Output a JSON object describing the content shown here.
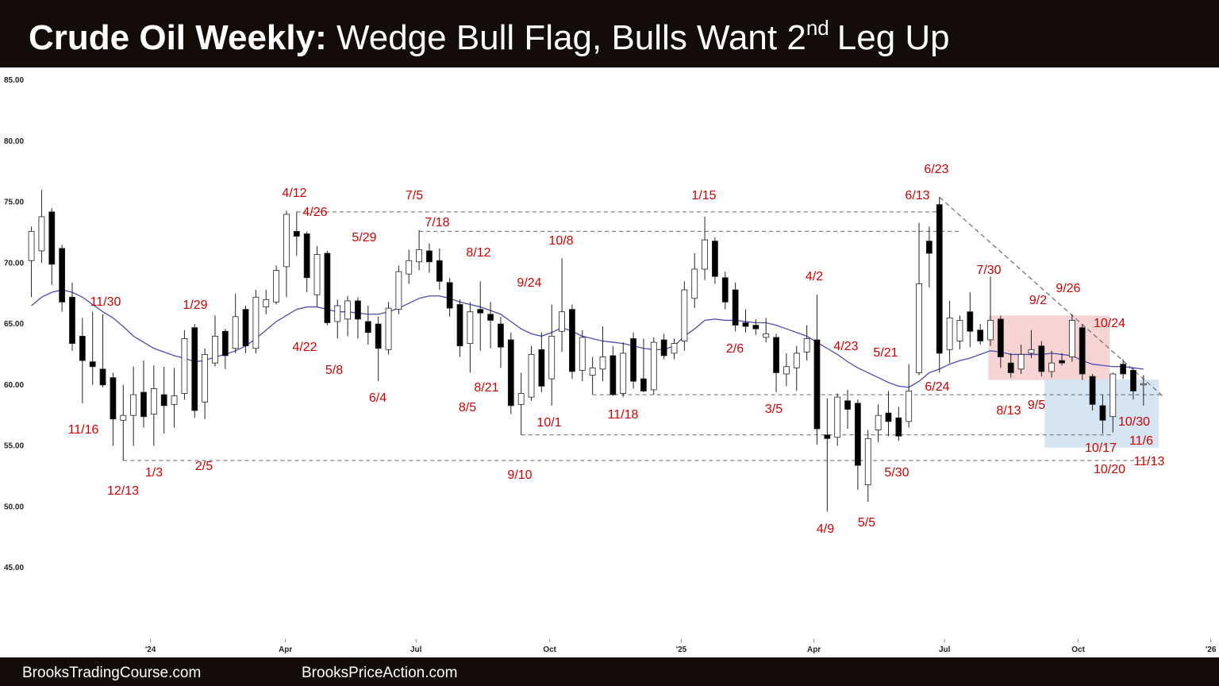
{
  "chart_data": {
    "type": "candlestick",
    "title": {
      "lead": "Crude Oil Weekly:",
      "text": "Wedge Bull Flag, Bulls Want 2",
      "sup": "nd",
      "tail": "Leg Up"
    },
    "footer": [
      "BrooksTradingCourse.com",
      "BrooksPriceAction.com"
    ],
    "categories": [
      null,
      null,
      null,
      null,
      null,
      null,
      null,
      null,
      null,
      null,
      null,
      null,
      null,
      null,
      null,
      null,
      null,
      null,
      null,
      null,
      null,
      null,
      null,
      null,
      null,
      null,
      null,
      null,
      null,
      null,
      null,
      null,
      null,
      null,
      null,
      null,
      null,
      null,
      null,
      null,
      null,
      null,
      null,
      null,
      null,
      null,
      null,
      null,
      null,
      null,
      null,
      null,
      null,
      null,
      null,
      null,
      null,
      null,
      null,
      null,
      null,
      null,
      null,
      null,
      null,
      null,
      null,
      null,
      null,
      null,
      null,
      null,
      null,
      null,
      null,
      null,
      null,
      null,
      null,
      null,
      null,
      null,
      null,
      null,
      null,
      null,
      null,
      null,
      null,
      null,
      null,
      null,
      null,
      null,
      null,
      null,
      null,
      null,
      null,
      null,
      null,
      null,
      null,
      null,
      null,
      null,
      null,
      null,
      null,
      null
    ],
    "open": [
      70.2,
      71.0,
      74.2,
      71.2,
      67.2,
      64.0,
      61.9,
      61.3,
      60.6,
      57.1,
      57.5,
      59.4,
      57.6,
      59.2,
      58.4,
      59.3,
      64.7,
      58.6,
      61.8,
      64.4,
      63.0,
      66.2,
      63.0,
      66.4,
      66.8,
      69.7,
      72.6,
      72.4,
      67.4,
      70.8,
      65.2,
      65.4,
      66.9,
      65.2,
      65.0,
      62.9,
      66.2,
      69.1,
      70.1,
      71.0,
      70.2,
      68.4,
      66.6,
      63.4,
      66.2,
      65.8,
      65.0,
      63.7,
      58.4,
      59.0,
      62.9,
      60.5,
      64.4,
      66.2,
      61.2,
      60.8,
      61.3,
      62.4,
      59.3,
      63.8,
      60.5,
      59.6,
      63.7,
      62.6,
      63.6,
      67.1,
      69.5,
      71.8,
      68.8,
      67.8,
      65.1,
      64.9,
      63.9,
      63.9,
      60.9,
      61.4,
      62.7,
      63.7,
      55.9,
      55.7,
      58.7,
      58.5,
      51.8,
      56.3,
      57.7,
      57.3,
      57.0,
      61.0,
      71.8,
      74.8,
      62.9,
      63.6,
      66.0,
      64.5,
      63.7,
      65.4,
      61.8,
      61.3,
      62.6,
      63.2,
      61.1,
      62.0,
      62.3,
      64.7,
      60.7,
      58.3,
      57.4,
      61.7,
      61.2,
      60.0
    ],
    "high": [
      73.0,
      76.0,
      74.5,
      71.5,
      68.4,
      65.5,
      66.0,
      65.8,
      61.0,
      60.0,
      61.5,
      62.0,
      61.6,
      61.5,
      61.4,
      64.5,
      65.0,
      63.0,
      65.7,
      64.6,
      67.5,
      66.5,
      67.8,
      67.8,
      69.8,
      74.3,
      74.2,
      72.6,
      71.4,
      71.0,
      67.0,
      67.3,
      67.2,
      66.5,
      65.6,
      66.8,
      69.8,
      71.1,
      72.7,
      71.6,
      71.2,
      68.8,
      67.0,
      66.8,
      68.5,
      66.8,
      65.6,
      64.3,
      61.0,
      63.2,
      64.3,
      66.6,
      70.4,
      66.6,
      64.5,
      62.3,
      64.8,
      63.2,
      63.5,
      64.3,
      63.8,
      63.9,
      64.2,
      63.8,
      68.5,
      70.8,
      73.8,
      72.1,
      69.3,
      68.4,
      66.2,
      65.4,
      65.5,
      64.2,
      62.6,
      63.2,
      64.9,
      67.4,
      58.9,
      59.3,
      59.6,
      58.8,
      56.3,
      58.4,
      59.5,
      58.2,
      61.7,
      73.3,
      73.0,
      75.4,
      66.9,
      65.7,
      67.6,
      65.0,
      68.9,
      65.7,
      62.6,
      63.3,
      64.5,
      63.6,
      62.8,
      62.6,
      65.8,
      65.0,
      60.9,
      59.2,
      61.0,
      62.1,
      61.4,
      60.8
    ],
    "low": [
      67.2,
      70.0,
      68.2,
      66.0,
      62.8,
      58.5,
      60.0,
      59.8,
      55.0,
      53.8,
      55.0,
      56.5,
      55.0,
      56.0,
      56.5,
      58.8,
      57.3,
      57.2,
      61.5,
      61.3,
      62.6,
      62.6,
      62.6,
      65.8,
      66.6,
      67.2,
      70.6,
      67.6,
      66.4,
      64.9,
      63.8,
      64.0,
      63.8,
      63.3,
      60.3,
      62.5,
      65.8,
      68.3,
      69.4,
      69.2,
      67.8,
      65.6,
      62.3,
      61.0,
      62.8,
      63.0,
      61.4,
      57.6,
      55.9,
      58.7,
      59.4,
      58.3,
      62.7,
      60.5,
      60.3,
      59.2,
      60.3,
      59.1,
      59.0,
      59.7,
      59.4,
      59.2,
      62.1,
      62.1,
      62.8,
      66.3,
      68.6,
      68.3,
      66.2,
      64.4,
      64.3,
      64.1,
      63.5,
      59.4,
      59.9,
      59.5,
      62.0,
      55.1,
      49.6,
      55.0,
      56.4,
      51.4,
      50.4,
      55.3,
      55.8,
      55.4,
      56.5,
      60.8,
      68.0,
      61.0,
      61.8,
      62.9,
      63.1,
      63.3,
      63.2,
      61.4,
      60.6,
      60.9,
      62.2,
      60.7,
      60.6,
      61.6,
      61.9,
      60.4,
      57.9,
      56.0,
      56.1,
      60.5,
      58.8,
      58.3
    ],
    "close": [
      72.6,
      73.8,
      69.9,
      66.8,
      63.4,
      62.0,
      61.5,
      60.0,
      57.2,
      57.5,
      59.2,
      57.4,
      59.7,
      58.3,
      59.1,
      63.8,
      57.9,
      62.5,
      64.0,
      62.4,
      65.6,
      63.2,
      67.2,
      67.0,
      69.4,
      74.0,
      72.2,
      68.8,
      70.7,
      65.1,
      66.5,
      66.9,
      65.4,
      64.3,
      63.0,
      66.3,
      69.3,
      70.2,
      71.1,
      70.1,
      68.5,
      66.3,
      63.2,
      66.0,
      65.9,
      65.3,
      63.1,
      58.3,
      59.3,
      62.5,
      59.9,
      64.0,
      66.0,
      61.1,
      63.9,
      61.4,
      62.3,
      59.2,
      62.6,
      60.3,
      59.5,
      63.5,
      62.4,
      63.4,
      67.8,
      69.5,
      71.9,
      68.9,
      66.8,
      64.9,
      64.8,
      64.6,
      64.2,
      61.0,
      61.5,
      62.6,
      63.8,
      56.4,
      55.6,
      59.0,
      58.0,
      53.4,
      55.6,
      57.5,
      57.0,
      55.8,
      59.5,
      68.3,
      70.8,
      62.6,
      65.5,
      65.3,
      64.4,
      63.6,
      65.3,
      62.3,
      61.0,
      62.5,
      62.9,
      61.1,
      61.8,
      61.8,
      65.3,
      60.9,
      58.4,
      57.1,
      60.9,
      60.9,
      59.5,
      60.1
    ],
    "ma": {
      "color": "#4b4bb0",
      "values": [
        66.5,
        67.2,
        67.6,
        67.8,
        67.6,
        67.2,
        66.6,
        66.0,
        65.5,
        64.8,
        64.0,
        63.5,
        63.0,
        62.7,
        62.4,
        62.2,
        61.9,
        62.0,
        62.3,
        62.5,
        62.8,
        63.2,
        63.8,
        64.5,
        65.2,
        65.7,
        66.2,
        66.4,
        66.4,
        66.2,
        66.0,
        66.0,
        65.9,
        65.8,
        65.8,
        66.0,
        66.3,
        66.7,
        67.1,
        67.3,
        67.3,
        67.1,
        66.8,
        66.6,
        66.4,
        66.1,
        65.8,
        65.2,
        64.6,
        64.2,
        64.0,
        64.3,
        64.7,
        64.4,
        64.0,
        63.8,
        63.6,
        63.5,
        63.4,
        63.2,
        63.0,
        62.9,
        62.9,
        63.2,
        64.0,
        64.6,
        65.3,
        65.4,
        65.3,
        65.3,
        65.2,
        65.1,
        65.1,
        64.9,
        64.6,
        64.3,
        64.0,
        63.5,
        63.0,
        62.5,
        61.9,
        61.4,
        61.0,
        60.6,
        60.2,
        59.9,
        59.8,
        60.3,
        61.0,
        61.3,
        61.7,
        62.0,
        62.2,
        62.5,
        62.8,
        62.7,
        62.5,
        62.5,
        62.5,
        62.5,
        62.6,
        62.5,
        62.4,
        62.0,
        61.7,
        61.6,
        61.5,
        61.5,
        61.4,
        61.3
      ]
    },
    "xlim": [
      -2.3,
      116.4
    ],
    "xticks": [
      {
        "value": 11.67,
        "label": "'24"
      },
      {
        "value": 24.9,
        "label": "Apr"
      },
      {
        "value": 37.7,
        "label": "Jul"
      },
      {
        "value": 50.8,
        "label": "Oct"
      },
      {
        "value": 63.7,
        "label": "'25"
      },
      {
        "value": 76.7,
        "label": "Apr"
      },
      {
        "value": 89.5,
        "label": "Jul"
      },
      {
        "value": 102.6,
        "label": "Oct"
      },
      {
        "value": 115.6,
        "label": "'26"
      }
    ],
    "ylim": [
      39.14,
      85.85
    ],
    "yticks": [
      {
        "value": 85,
        "label": "85.00"
      },
      {
        "value": 80,
        "label": "80.00"
      },
      {
        "value": 75,
        "label": "75.00"
      },
      {
        "value": 70,
        "label": "70.00"
      },
      {
        "value": 65,
        "label": "65.00"
      },
      {
        "value": 60,
        "label": "60.00"
      },
      {
        "value": 55,
        "label": "55.00"
      },
      {
        "value": 50,
        "label": "50.00"
      },
      {
        "value": 45,
        "label": "45.00"
      }
    ],
    "zones": [
      {
        "x": [
          93.8,
          105.7
        ],
        "y": [
          60.4,
          65.7
        ],
        "color": "#f6cccc"
      },
      {
        "x": [
          99.3,
          110.5
        ],
        "y": [
          54.85,
          60.45
        ],
        "color": "#cfe0f0"
      }
    ],
    "levels": [
      {
        "y": 74.2,
        "x": [
          26,
          89
        ]
      },
      {
        "y": 72.6,
        "x": [
          38,
          91
        ]
      },
      {
        "y": 59.2,
        "x": [
          55,
          111
        ]
      },
      {
        "y": 55.9,
        "x": [
          48,
          106
        ]
      },
      {
        "y": 53.8,
        "x": [
          9,
          110.5
        ]
      }
    ],
    "trendline": {
      "x": [
        89,
        111
      ],
      "y": [
        75.4,
        59.0
      ]
    },
    "annotations": [
      "11/30",
      "11/16",
      "12/13",
      "1/3",
      "2/5",
      "1/29",
      "4/12",
      "4/26",
      "4/22",
      "5/8",
      "5/29",
      "6/4",
      "7/5",
      "7/18",
      "8/12",
      "9/24",
      "10/8",
      "8/21",
      "8/5",
      "10/1",
      "9/10",
      "11/18",
      "1/15",
      "2/6",
      "3/5",
      "4/2",
      "4/23",
      "5/21",
      "5/30",
      "4/9",
      "5/5",
      "6/23",
      "6/13",
      "6/24",
      "7/30",
      "9/2",
      "9/26",
      "10/24",
      "8/13",
      "9/5",
      "10/30",
      "11/6",
      "10/17",
      "11/13",
      "10/20"
    ]
  }
}
